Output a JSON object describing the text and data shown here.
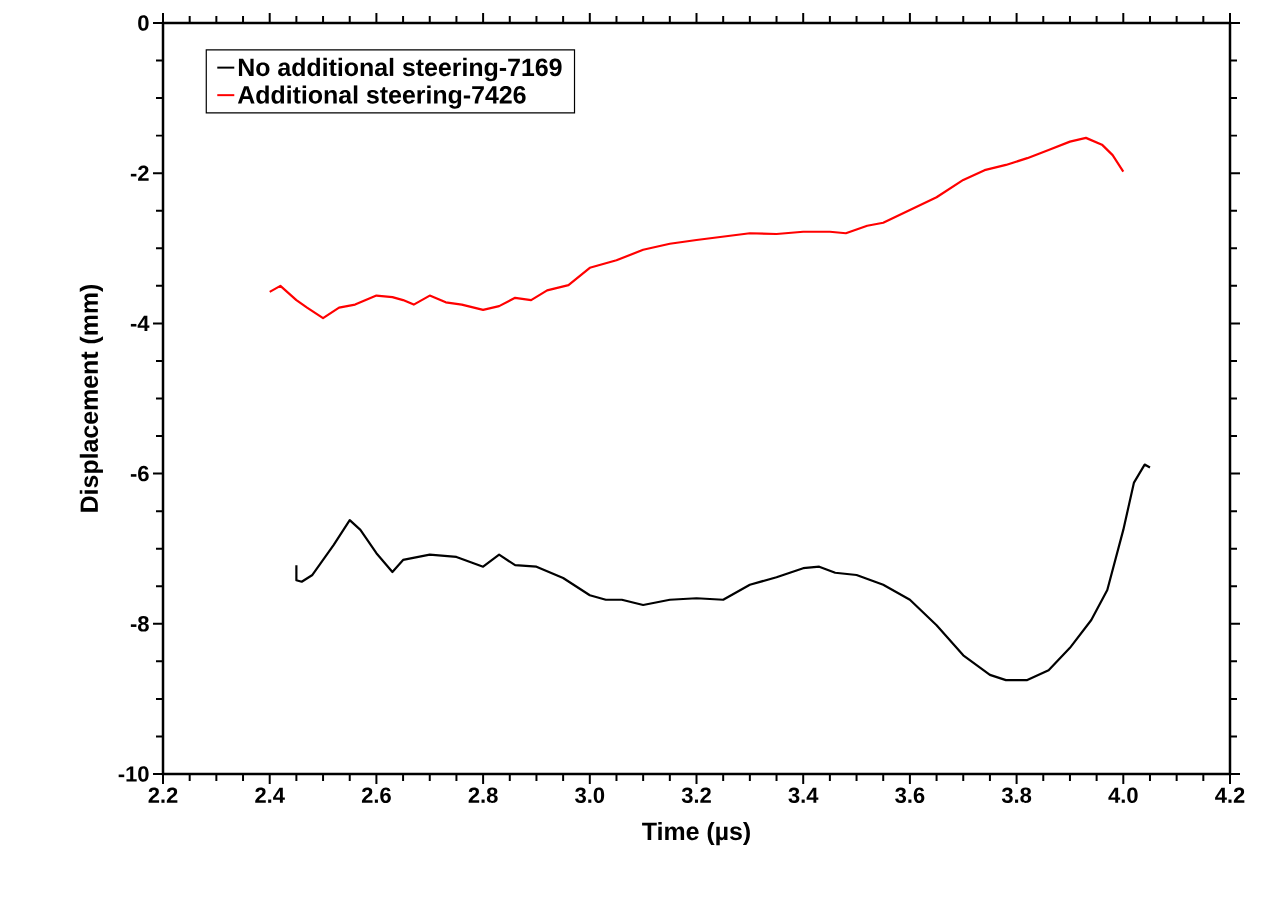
{
  "chart_data": {
    "type": "line",
    "xlabel": "Time (µs)",
    "ylabel": "Displacement (mm)",
    "xlim": [
      2.2,
      4.2
    ],
    "ylim": [
      -10,
      0
    ],
    "xticks": [
      {
        "value": 2.2,
        "label": "2.2"
      },
      {
        "value": 2.4,
        "label": "2.4"
      },
      {
        "value": 2.6,
        "label": "2.6"
      },
      {
        "value": 2.8,
        "label": "2.8"
      },
      {
        "value": 3.0,
        "label": "3.0"
      },
      {
        "value": 3.2,
        "label": "3.2"
      },
      {
        "value": 3.4,
        "label": "3.4"
      },
      {
        "value": 3.6,
        "label": "3.6"
      },
      {
        "value": 3.8,
        "label": "3.8"
      },
      {
        "value": 4.0,
        "label": "4.0"
      },
      {
        "value": 4.2,
        "label": "4.2"
      }
    ],
    "yticks": [
      -10,
      -8,
      -6,
      -4,
      -2,
      0
    ],
    "grid": false,
    "legend": "top left",
    "marker": "none",
    "line_style": "solid",
    "series": [
      {
        "name": "No additional steering-7169",
        "color": "#000000",
        "x": [
          2.45,
          2.45,
          2.46,
          2.48,
          2.5,
          2.52,
          2.55,
          2.57,
          2.6,
          2.63,
          2.65,
          2.7,
          2.75,
          2.8,
          2.83,
          2.86,
          2.9,
          2.95,
          3.0,
          3.03,
          3.06,
          3.1,
          3.15,
          3.2,
          3.25,
          3.3,
          3.35,
          3.4,
          3.43,
          3.46,
          3.5,
          3.55,
          3.6,
          3.65,
          3.7,
          3.75,
          3.78,
          3.82,
          3.86,
          3.9,
          3.94,
          3.97,
          4.0,
          4.02,
          4.04,
          4.05
        ],
        "values": [
          -7.22,
          -7.42,
          -7.44,
          -7.35,
          -7.15,
          -6.95,
          -6.62,
          -6.75,
          -7.06,
          -7.31,
          -7.15,
          -7.08,
          -7.11,
          -7.24,
          -7.08,
          -7.22,
          -7.24,
          -7.39,
          -7.62,
          -7.68,
          -7.68,
          -7.75,
          -7.68,
          -7.66,
          -7.68,
          -7.48,
          -7.38,
          -7.26,
          -7.24,
          -7.32,
          -7.35,
          -7.48,
          -7.68,
          -8.02,
          -8.42,
          -8.68,
          -8.75,
          -8.75,
          -8.62,
          -8.32,
          -7.95,
          -7.55,
          -6.75,
          -6.12,
          -5.88,
          -5.92
        ]
      },
      {
        "name": "Additional steering-7426",
        "color": "#ff0000",
        "x": [
          2.4,
          2.42,
          2.45,
          2.47,
          2.5,
          2.53,
          2.56,
          2.6,
          2.63,
          2.65,
          2.67,
          2.7,
          2.73,
          2.76,
          2.8,
          2.83,
          2.86,
          2.89,
          2.92,
          2.96,
          3.0,
          3.05,
          3.1,
          3.15,
          3.2,
          3.3,
          3.35,
          3.4,
          3.45,
          3.48,
          3.52,
          3.55,
          3.6,
          3.65,
          3.7,
          3.74,
          3.78,
          3.82,
          3.86,
          3.9,
          3.93,
          3.96,
          3.98,
          4.0
        ],
        "values": [
          -3.58,
          -3.5,
          -3.69,
          -3.79,
          -3.93,
          -3.79,
          -3.75,
          -3.63,
          -3.65,
          -3.69,
          -3.75,
          -3.63,
          -3.72,
          -3.75,
          -3.82,
          -3.77,
          -3.66,
          -3.69,
          -3.56,
          -3.49,
          -3.26,
          -3.16,
          -3.02,
          -2.94,
          -2.89,
          -2.8,
          -2.81,
          -2.78,
          -2.78,
          -2.8,
          -2.7,
          -2.66,
          -2.49,
          -2.32,
          -2.09,
          -1.96,
          -1.89,
          -1.8,
          -1.69,
          -1.58,
          -1.53,
          -1.62,
          -1.76,
          -1.98
        ]
      }
    ]
  }
}
